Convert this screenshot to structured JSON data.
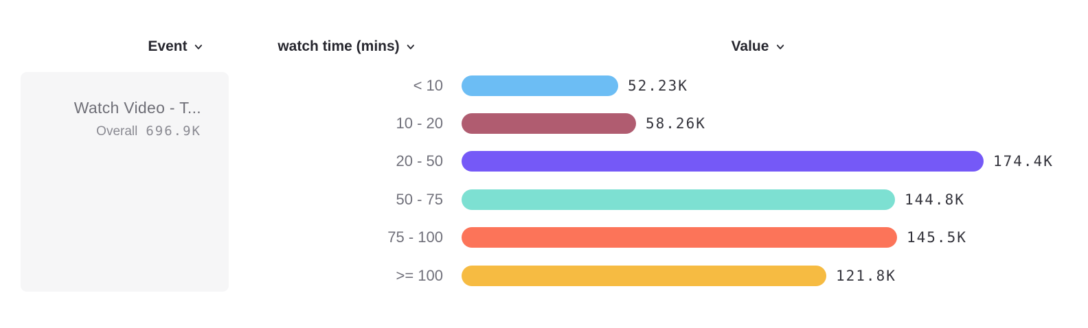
{
  "header": {
    "columns": [
      {
        "label": "Event"
      },
      {
        "label": "watch time (mins)"
      },
      {
        "label": "Value"
      }
    ]
  },
  "event_card": {
    "title": "Watch Video - T...",
    "overall_label": "Overall",
    "overall_value": "696.9K"
  },
  "chart_data": {
    "type": "bar",
    "orientation": "horizontal",
    "group_by": "watch time (mins)",
    "categories": [
      "< 10",
      "10 - 20",
      "20 - 50",
      "50 - 75",
      "75 - 100",
      ">= 100"
    ],
    "values": [
      52230,
      58260,
      174400,
      144800,
      145500,
      121800
    ],
    "value_labels": [
      "52.23K",
      "58.26K",
      "174.4K",
      "144.8K",
      "145.5K",
      "121.8K"
    ],
    "bar_colors": [
      "#6cbdf4",
      "#b05c70",
      "#7559f7",
      "#7de0d2",
      "#fc7459",
      "#f6bb42"
    ],
    "xlim": [
      0,
      174400
    ],
    "grid": false,
    "legend": false
  },
  "colors": {
    "card_bg": "#f6f6f7",
    "header_text": "#26262e",
    "bucket_label_text": "#70707a",
    "value_text": "#33333b",
    "card_text": "#6f6f77",
    "card_subtext": "#8a8a92"
  }
}
